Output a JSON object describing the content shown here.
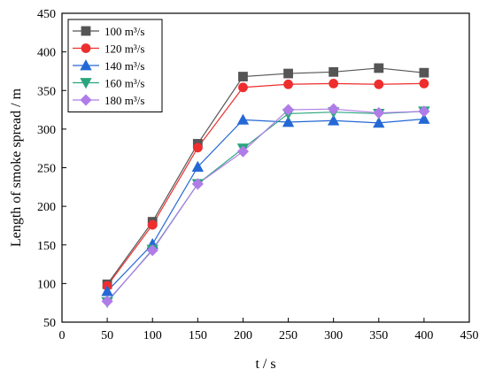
{
  "chart_data": {
    "type": "line",
    "xlabel": "t / s",
    "ylabel": "Length of smoke spread / m",
    "xlim": [
      0,
      450
    ],
    "ylim": [
      50,
      450
    ],
    "xticks": [
      0,
      50,
      100,
      150,
      200,
      250,
      300,
      350,
      400,
      450
    ],
    "yticks": [
      50,
      100,
      150,
      200,
      250,
      300,
      350,
      400,
      450
    ],
    "grid": false,
    "legend_position": "top-left",
    "x": [
      50,
      100,
      150,
      200,
      250,
      300,
      350,
      400
    ],
    "series": [
      {
        "name": "100 m³/s",
        "marker": "square",
        "color": "#555555",
        "values": [
          99,
          180,
          281,
          368,
          372,
          374,
          379,
          373
        ]
      },
      {
        "name": "120 m³/s",
        "marker": "circle",
        "color": "#ee2e2e",
        "values": [
          97,
          176,
          276,
          354,
          358,
          359,
          358,
          359
        ]
      },
      {
        "name": "140 m³/s",
        "marker": "triangle-up",
        "color": "#2468d6",
        "values": [
          90,
          151,
          251,
          312,
          309,
          311,
          308,
          313
        ]
      },
      {
        "name": "160 m³/s",
        "marker": "triangle-down",
        "color": "#2aa57e",
        "values": [
          76,
          144,
          229,
          275,
          320,
          322,
          320,
          323
        ]
      },
      {
        "name": "180 m³/s",
        "marker": "diamond",
        "color": "#b07ce8",
        "values": [
          77,
          143,
          229,
          271,
          325,
          326,
          321,
          323
        ]
      }
    ]
  }
}
